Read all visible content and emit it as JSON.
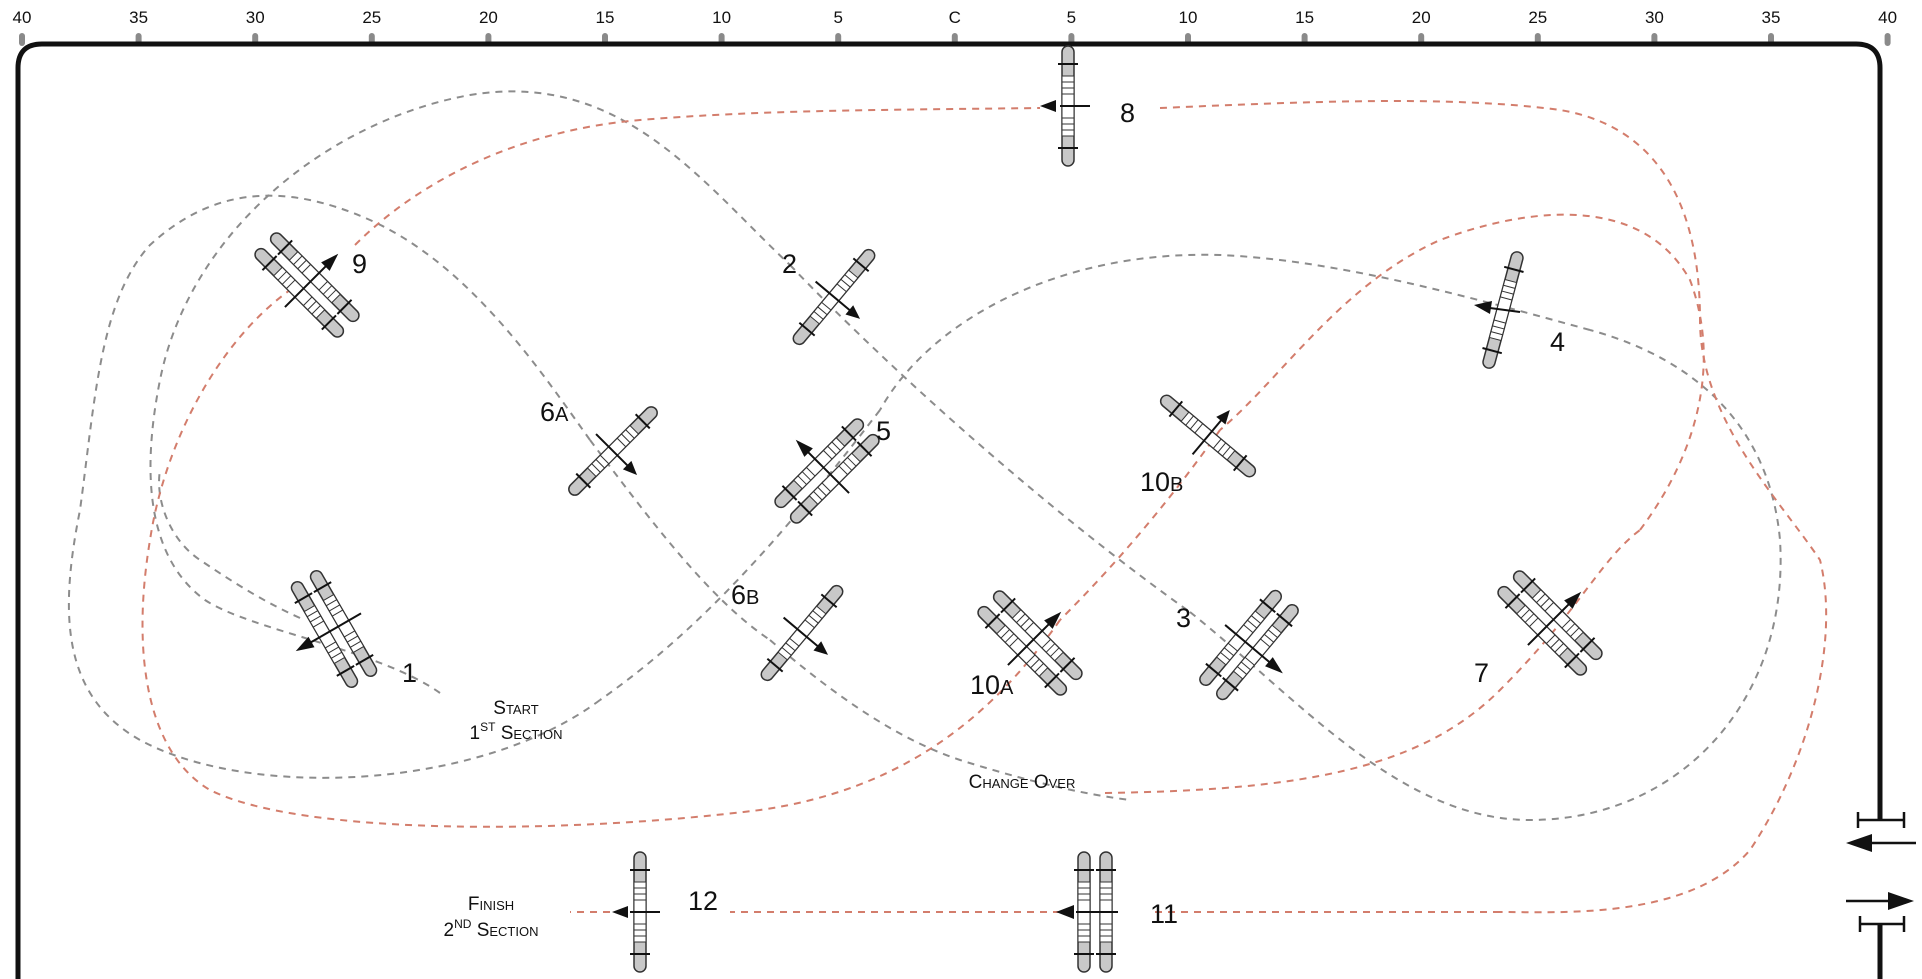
{
  "ruler": {
    "ticks": [
      "40",
      "35",
      "30",
      "25",
      "20",
      "15",
      "10",
      "5",
      "C",
      "5",
      "10",
      "15",
      "20",
      "25",
      "30",
      "35",
      "40"
    ]
  },
  "gates": {
    "g1": {
      "number": "1",
      "sub": ""
    },
    "g2": {
      "number": "2",
      "sub": ""
    },
    "g3": {
      "number": "3",
      "sub": ""
    },
    "g4": {
      "number": "4",
      "sub": ""
    },
    "g5": {
      "number": "5",
      "sub": ""
    },
    "g6a": {
      "number": "6",
      "sub": "A"
    },
    "g6b": {
      "number": "6",
      "sub": "B"
    },
    "g7": {
      "number": "7",
      "sub": ""
    },
    "g8": {
      "number": "8",
      "sub": ""
    },
    "g9": {
      "number": "9",
      "sub": ""
    },
    "g10a": {
      "number": "10",
      "sub": "A"
    },
    "g10b": {
      "number": "10",
      "sub": "B"
    },
    "g11": {
      "number": "11",
      "sub": ""
    },
    "g12": {
      "number": "12",
      "sub": ""
    }
  },
  "labels": {
    "start": {
      "line1": "Start",
      "line2_num": "1",
      "line2_sup": "ST",
      "line2_rest": "Section"
    },
    "change_over": "Change Over",
    "finish": {
      "line1": "Finish",
      "line2_num": "2",
      "line2_sup": "ND",
      "line2_rest": "Section"
    }
  },
  "colors": {
    "first_section_path": "#8c8c8c",
    "second_section_path": "#d37d6c",
    "border": "#111111"
  }
}
